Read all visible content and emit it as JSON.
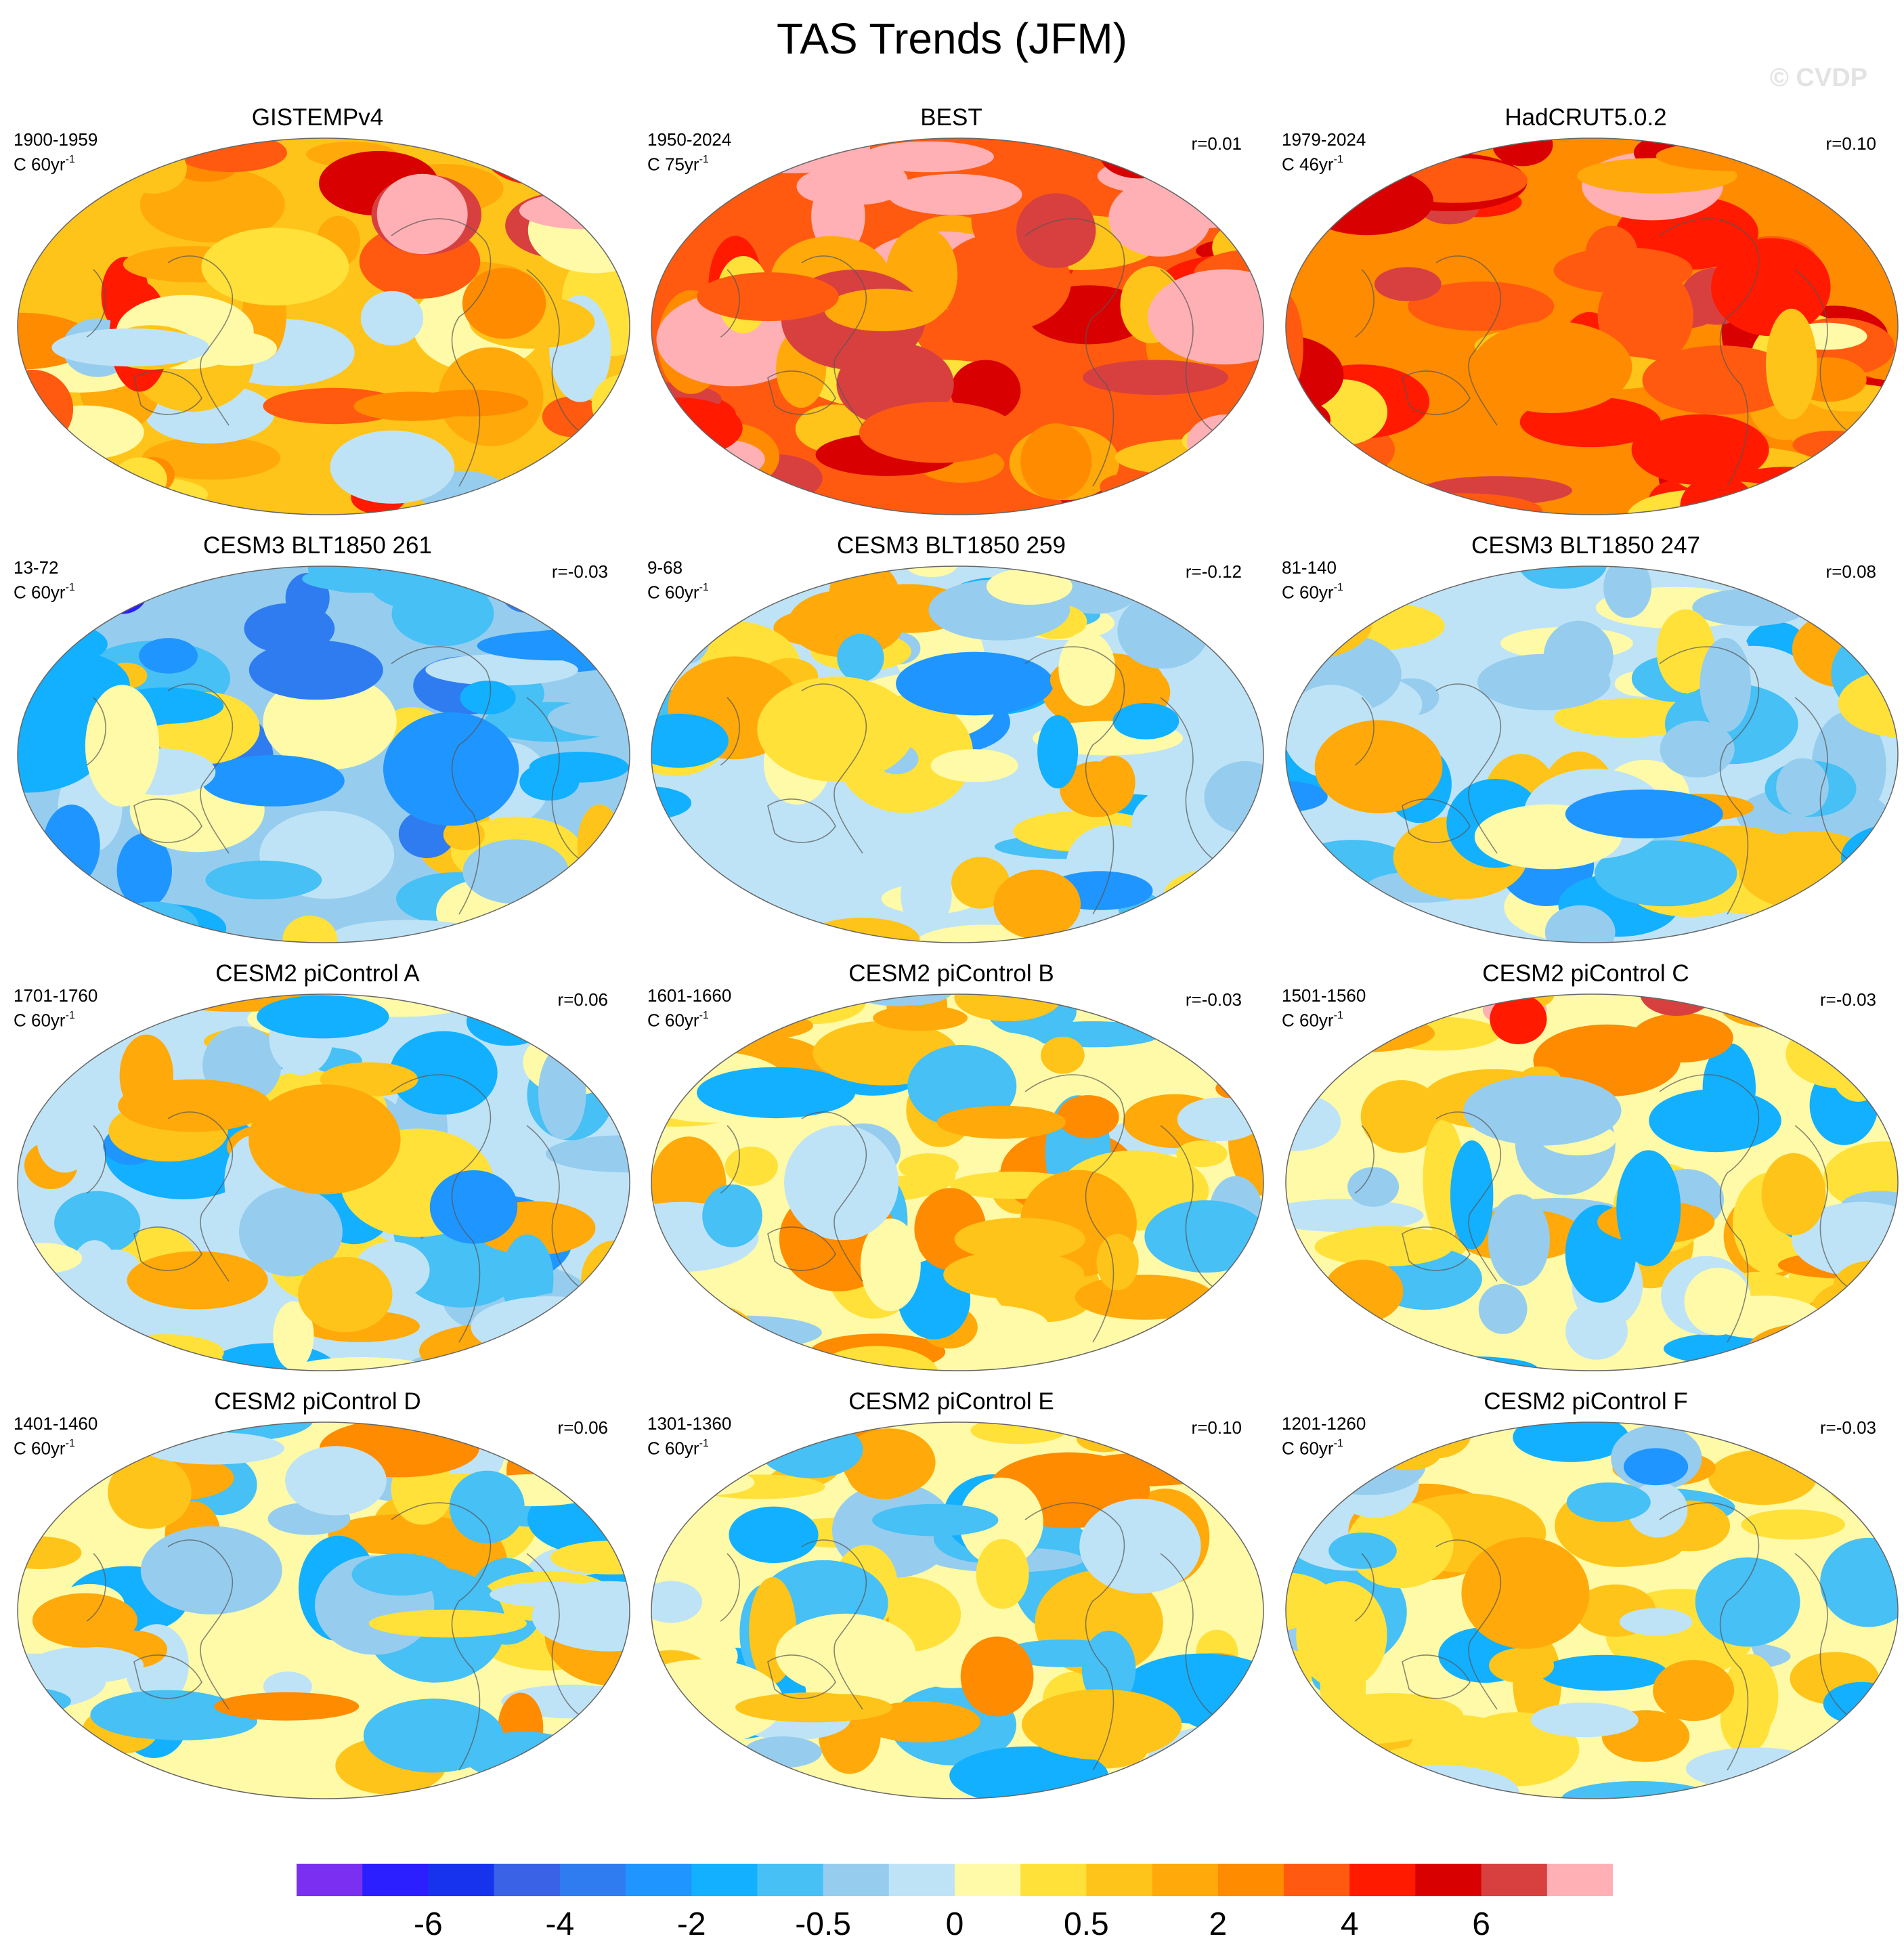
{
  "title": "TAS Trends (JFM)",
  "watermark": "© CVDP",
  "chart_data": {
    "type": "map-grid",
    "variable": "TAS",
    "season": "JFM",
    "projection": "Robinson (Pacific-centred)",
    "panels": [
      {
        "title": "GISTEMPv4",
        "period": "1900-1959",
        "units": "C 60yr",
        "units_exp": "-1",
        "r": "",
        "warm_bias": 0.5,
        "pattern": "warm"
      },
      {
        "title": "BEST",
        "period": "1950-2024",
        "units": "C 75yr",
        "units_exp": "-1",
        "r": "r=0.01",
        "warm_bias": 1.1,
        "pattern": "warm-strong"
      },
      {
        "title": "HadCRUT5.0.2",
        "period": "1979-2024",
        "units": "C 46yr",
        "units_exp": "-1",
        "r": "r=0.10",
        "warm_bias": 0.9,
        "pattern": "warm-strong"
      },
      {
        "title": "CESM3 BLT1850 261",
        "period": "13-72",
        "units": "C 60yr",
        "units_exp": "-1",
        "r": "r=-0.03",
        "warm_bias": -0.3,
        "pattern": "mixed-cold"
      },
      {
        "title": "CESM3 BLT1850 259",
        "period": "9-68",
        "units": "C 60yr",
        "units_exp": "-1",
        "r": "r=-0.12",
        "warm_bias": -0.05,
        "pattern": "mixed"
      },
      {
        "title": "CESM3 BLT1850 247",
        "period": "81-140",
        "units": "C 60yr",
        "units_exp": "-1",
        "r": "r=0.08",
        "warm_bias": -0.1,
        "pattern": "mixed"
      },
      {
        "title": "CESM2 piControl A",
        "period": "1701-1760",
        "units": "C 60yr",
        "units_exp": "-1",
        "r": "r=0.06",
        "warm_bias": -0.05,
        "pattern": "mixed"
      },
      {
        "title": "CESM2 piControl B",
        "period": "1601-1660",
        "units": "C 60yr",
        "units_exp": "-1",
        "r": "r=-0.03",
        "warm_bias": 0.1,
        "pattern": "mixed"
      },
      {
        "title": "CESM2 piControl C",
        "period": "1501-1560",
        "units": "C 60yr",
        "units_exp": "-1",
        "r": "r=-0.03",
        "warm_bias": 0.05,
        "pattern": "mixed-arctic-warm"
      },
      {
        "title": "CESM2 piControl D",
        "period": "1401-1460",
        "units": "C 60yr",
        "units_exp": "-1",
        "r": "r=0.06",
        "warm_bias": 0.1,
        "pattern": "mixed"
      },
      {
        "title": "CESM2 piControl E",
        "period": "1301-1360",
        "units": "C 60yr",
        "units_exp": "-1",
        "r": "r=0.10",
        "warm_bias": 0.1,
        "pattern": "mixed"
      },
      {
        "title": "CESM2 piControl F",
        "period": "1201-1260",
        "units": "C 60yr",
        "units_exp": "-1",
        "r": "r=-0.03",
        "warm_bias": 0.0,
        "pattern": "mixed"
      }
    ],
    "colorbar": {
      "labels": [
        "-6",
        "-4",
        "-2",
        "-0.5",
        "0",
        "0.5",
        "2",
        "4",
        "6"
      ],
      "colors": [
        "#7b2ff0",
        "#2b1fff",
        "#1733ee",
        "#3a62e6",
        "#2f7cf0",
        "#1f95ff",
        "#13b0ff",
        "#46c0f5",
        "#96cdee",
        "#bfe3f6",
        "#fffaa8",
        "#ffe13a",
        "#ffc419",
        "#ffa90a",
        "#ff8b00",
        "#ff5a0f",
        "#ff1a00",
        "#d80000",
        "#d84040",
        "#ffb0b4"
      ]
    }
  }
}
